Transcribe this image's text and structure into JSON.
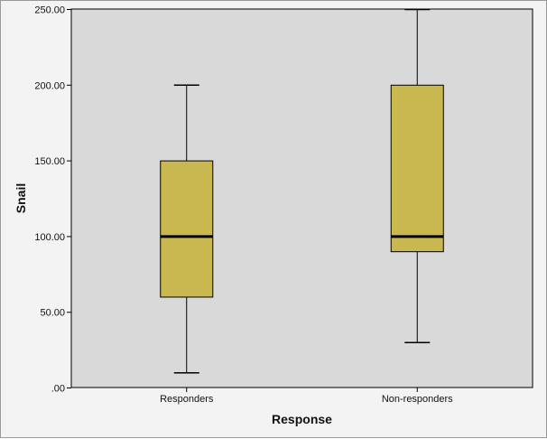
{
  "chart_data": {
    "type": "box",
    "xlabel": "Response",
    "ylabel": "Snail",
    "ylim": [
      0,
      250
    ],
    "yticks": [
      0,
      50,
      100,
      150,
      200,
      250
    ],
    "ytick_labels": [
      ".00",
      "50.00",
      "100.00",
      "150.00",
      "200.00",
      "250.00"
    ],
    "categories": [
      "Responders",
      "Non-responders"
    ],
    "boxes": [
      {
        "category": "Responders",
        "min": 10,
        "q1": 60,
        "median": 100,
        "q3": 150,
        "max": 200
      },
      {
        "category": "Non-responders",
        "min": 30,
        "q1": 90,
        "median": 100,
        "q3": 200,
        "max": 250
      }
    ],
    "colors": {
      "plot_background": "#d9d9d9",
      "box_fill": "#c9b74f",
      "stroke": "#000000",
      "outer_background": "#f3f3f3"
    },
    "grid": false
  }
}
